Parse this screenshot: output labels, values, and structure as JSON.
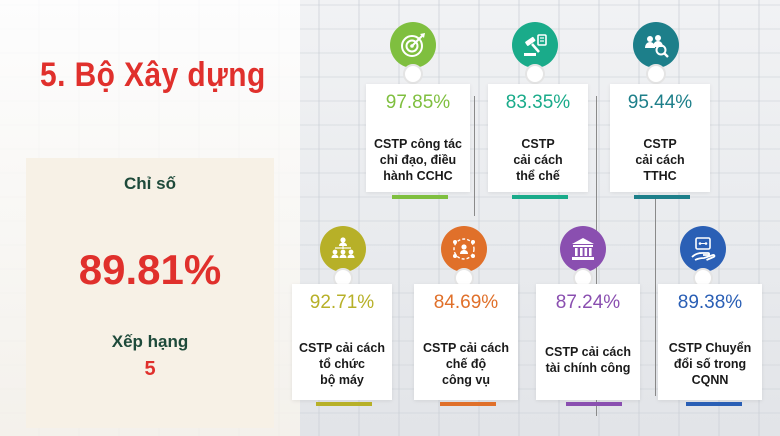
{
  "title": "5. Bộ Xây dựng",
  "summary": {
    "index_label": "Chỉ số",
    "index_value": "89.81%",
    "rank_label": "Xếp hạng",
    "rank_value": "5"
  },
  "cards": [
    {
      "pct": "97.85%",
      "lines": [
        "CSTP công tác",
        "chỉ đạo, điều",
        "hành CCHC"
      ],
      "color": "#7fbf3f",
      "icon": "target-icon"
    },
    {
      "pct": "83.35%",
      "lines": [
        "CSTP",
        "cải cách",
        "thể chế"
      ],
      "color": "#1aab8a",
      "icon": "legal-gavel-icon"
    },
    {
      "pct": "95.44%",
      "lines": [
        "CSTP",
        "cải cách",
        "TTHC"
      ],
      "color": "#1d7f8a",
      "icon": "people-search-icon"
    },
    {
      "pct": "92.71%",
      "lines": [
        "CSTP cải cách",
        "tổ chức",
        "bộ máy"
      ],
      "color": "#b7b028",
      "icon": "org-chart-icon"
    },
    {
      "pct": "84.69%",
      "lines": [
        "CSTP cải cách",
        "chế độ",
        "công vụ"
      ],
      "color": "#e0702a",
      "icon": "network-people-icon"
    },
    {
      "pct": "87.24%",
      "lines": [
        "CSTP cải cách",
        "tài chính công"
      ],
      "color": "#8a4fb0",
      "icon": "bank-building-icon"
    },
    {
      "pct": "89.38%",
      "lines": [
        "CSTP Chuyển",
        "đổi số trong",
        "CQNN"
      ],
      "color": "#2a5fb5",
      "icon": "digital-hand-icon"
    }
  ]
}
